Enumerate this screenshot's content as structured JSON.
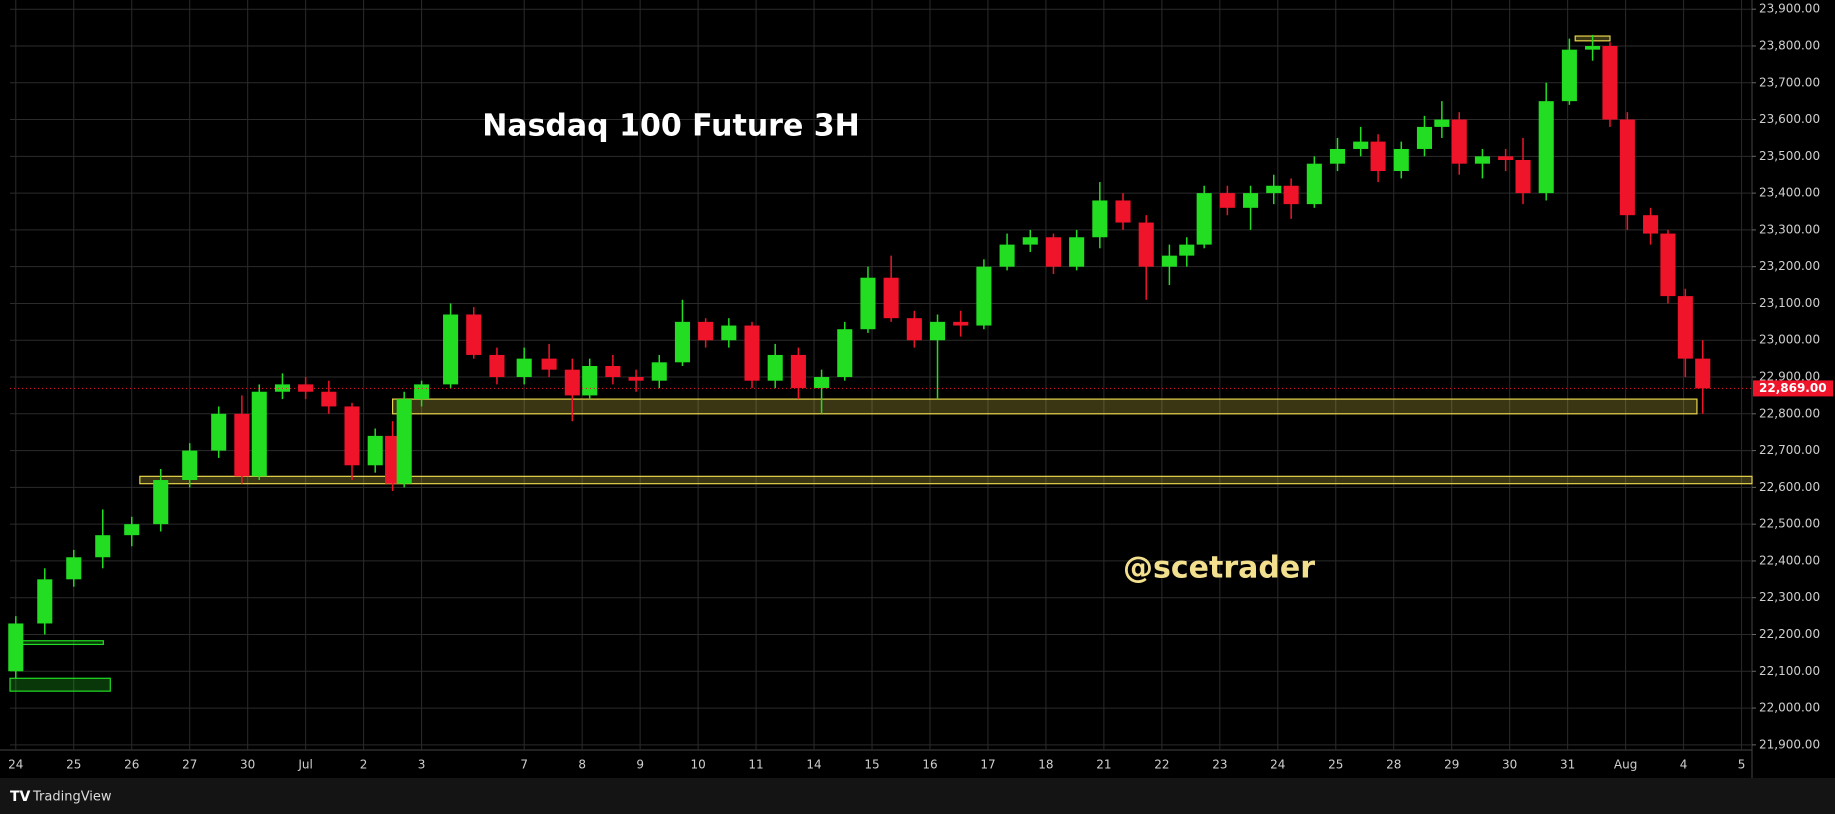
{
  "chart_data": {
    "type": "candlestick",
    "title": "Nasdaq 100 Future 3H",
    "watermark": "@scetrader",
    "brand": "TradingView",
    "up_color": "#22dd22",
    "down_color": "#f0142a",
    "grid": true,
    "xlim": [
      -0.1,
      29.95
    ],
    "ylim": [
      21886,
      23925
    ],
    "xticks": [
      {
        "value": 0,
        "label": "24"
      },
      {
        "value": 1,
        "label": "25"
      },
      {
        "value": 2,
        "label": "26"
      },
      {
        "value": 3,
        "label": "27"
      },
      {
        "value": 4,
        "label": "30"
      },
      {
        "value": 5,
        "label": "Jul"
      },
      {
        "value": 6,
        "label": "2"
      },
      {
        "value": 7,
        "label": "3"
      },
      {
        "value": 8.77,
        "label": "7"
      },
      {
        "value": 9.77,
        "label": "8"
      },
      {
        "value": 10.77,
        "label": "9"
      },
      {
        "value": 11.77,
        "label": "10"
      },
      {
        "value": 12.77,
        "label": "11"
      },
      {
        "value": 13.77,
        "label": "14"
      },
      {
        "value": 14.77,
        "label": "15"
      },
      {
        "value": 15.77,
        "label": "16"
      },
      {
        "value": 16.77,
        "label": "17"
      },
      {
        "value": 17.77,
        "label": "18"
      },
      {
        "value": 18.77,
        "label": "21"
      },
      {
        "value": 19.77,
        "label": "22"
      },
      {
        "value": 20.77,
        "label": "23"
      },
      {
        "value": 21.77,
        "label": "24"
      },
      {
        "value": 22.77,
        "label": "25"
      },
      {
        "value": 23.77,
        "label": "28"
      },
      {
        "value": 24.77,
        "label": "29"
      },
      {
        "value": 25.77,
        "label": "30"
      },
      {
        "value": 26.77,
        "label": "31"
      },
      {
        "value": 27.77,
        "label": "Aug"
      },
      {
        "value": 28.77,
        "label": "4"
      },
      {
        "value": 29.77,
        "label": "5"
      }
    ],
    "yticks": [
      {
        "value": 21900,
        "label": "21,900.00"
      },
      {
        "value": 22000,
        "label": "22,000.00"
      },
      {
        "value": 22100,
        "label": "22,100.00"
      },
      {
        "value": 22200,
        "label": "22,200.00"
      },
      {
        "value": 22300,
        "label": "22,300.00"
      },
      {
        "value": 22400,
        "label": "22,400.00"
      },
      {
        "value": 22500,
        "label": "22,500.00"
      },
      {
        "value": 22600,
        "label": "22,600.00"
      },
      {
        "value": 22700,
        "label": "22,700.00"
      },
      {
        "value": 22800,
        "label": "22,800.00"
      },
      {
        "value": 22900,
        "label": "22,900.00"
      },
      {
        "value": 23000,
        "label": "23,000.00"
      },
      {
        "value": 23100,
        "label": "23,100.00"
      },
      {
        "value": 23200,
        "label": "23,200.00"
      },
      {
        "value": 23300,
        "label": "23,300.00"
      },
      {
        "value": 23400,
        "label": "23,400.00"
      },
      {
        "value": 23500,
        "label": "23,500.00"
      },
      {
        "value": 23600,
        "label": "23,600.00"
      },
      {
        "value": 23700,
        "label": "23,700.00"
      },
      {
        "value": 23800,
        "label": "23,800.00"
      },
      {
        "value": 23900,
        "label": "23,900.00"
      }
    ],
    "last_price": {
      "value": 22869,
      "label": "22,869.00"
    },
    "x": [
      0.0,
      0.5,
      1.0,
      1.5,
      2.0,
      2.5,
      3.0,
      3.5,
      3.9,
      4.2,
      4.6,
      5.0,
      5.4,
      5.8,
      6.2,
      6.5,
      6.7,
      7.0,
      7.5,
      7.9,
      8.3,
      8.77,
      9.2,
      9.6,
      9.9,
      10.3,
      10.7,
      11.1,
      11.5,
      11.9,
      12.3,
      12.7,
      13.1,
      13.5,
      13.9,
      14.3,
      14.7,
      15.1,
      15.5,
      15.9,
      16.3,
      16.7,
      17.1,
      17.5,
      17.9,
      18.3,
      18.7,
      19.1,
      19.5,
      19.9,
      20.2,
      20.5,
      20.9,
      21.3,
      21.7,
      22.0,
      22.4,
      22.8,
      23.2,
      23.5,
      23.9,
      24.3,
      24.6,
      24.9,
      25.3,
      25.7,
      26.0,
      26.4,
      26.8,
      27.2,
      27.5,
      27.8,
      28.2,
      28.5,
      28.8,
      29.1
    ],
    "ohlc": [
      [
        22100,
        22250,
        22080,
        22230
      ],
      [
        22230,
        22380,
        22200,
        22350
      ],
      [
        22350,
        22430,
        22330,
        22410
      ],
      [
        22410,
        22540,
        22380,
        22470
      ],
      [
        22470,
        22520,
        22440,
        22500
      ],
      [
        22500,
        22650,
        22480,
        22620
      ],
      [
        22620,
        22720,
        22600,
        22700
      ],
      [
        22700,
        22820,
        22680,
        22800
      ],
      [
        22800,
        22850,
        22610,
        22630
      ],
      [
        22630,
        22880,
        22620,
        22860
      ],
      [
        22860,
        22910,
        22840,
        22880
      ],
      [
        22880,
        22900,
        22840,
        22860
      ],
      [
        22860,
        22890,
        22800,
        22820
      ],
      [
        22820,
        22830,
        22620,
        22660
      ],
      [
        22660,
        22760,
        22640,
        22740
      ],
      [
        22740,
        22780,
        22590,
        22610
      ],
      [
        22610,
        22860,
        22600,
        22840
      ],
      [
        22840,
        22890,
        22820,
        22880
      ],
      [
        22880,
        23100,
        22870,
        23070
      ],
      [
        23070,
        23090,
        22950,
        22960
      ],
      [
        22960,
        22980,
        22880,
        22900
      ],
      [
        22900,
        22980,
        22880,
        22950
      ],
      [
        22950,
        22990,
        22900,
        22920
      ],
      [
        22920,
        22950,
        22780,
        22850
      ],
      [
        22850,
        22950,
        22840,
        22930
      ],
      [
        22930,
        22960,
        22880,
        22900
      ],
      [
        22900,
        22920,
        22860,
        22890
      ],
      [
        22890,
        22960,
        22870,
        22940
      ],
      [
        22940,
        23110,
        22930,
        23050
      ],
      [
        23050,
        23060,
        22980,
        23000
      ],
      [
        23000,
        23060,
        22980,
        23040
      ],
      [
        23040,
        23050,
        22870,
        22890
      ],
      [
        22890,
        22990,
        22870,
        22960
      ],
      [
        22960,
        22980,
        22840,
        22870
      ],
      [
        22870,
        22920,
        22800,
        22900
      ],
      [
        22900,
        23050,
        22890,
        23030
      ],
      [
        23030,
        23200,
        23020,
        23170
      ],
      [
        23170,
        23230,
        23050,
        23060
      ],
      [
        23060,
        23080,
        22980,
        23000
      ],
      [
        23000,
        23070,
        22840,
        23050
      ],
      [
        23050,
        23080,
        23010,
        23040
      ],
      [
        23040,
        23220,
        23030,
        23200
      ],
      [
        23200,
        23290,
        23190,
        23260
      ],
      [
        23260,
        23300,
        23240,
        23280
      ],
      [
        23280,
        23290,
        23180,
        23200
      ],
      [
        23200,
        23300,
        23190,
        23280
      ],
      [
        23280,
        23430,
        23250,
        23380
      ],
      [
        23380,
        23400,
        23300,
        23320
      ],
      [
        23320,
        23340,
        23110,
        23200
      ],
      [
        23200,
        23260,
        23150,
        23230
      ],
      [
        23230,
        23280,
        23200,
        23260
      ],
      [
        23260,
        23420,
        23250,
        23400
      ],
      [
        23400,
        23420,
        23340,
        23360
      ],
      [
        23360,
        23420,
        23300,
        23400
      ],
      [
        23400,
        23450,
        23370,
        23420
      ],
      [
        23420,
        23440,
        23330,
        23370
      ],
      [
        23370,
        23500,
        23360,
        23480
      ],
      [
        23480,
        23550,
        23460,
        23520
      ],
      [
        23520,
        23580,
        23500,
        23540
      ],
      [
        23540,
        23560,
        23430,
        23460
      ],
      [
        23460,
        23540,
        23440,
        23520
      ],
      [
        23520,
        23610,
        23500,
        23580
      ],
      [
        23580,
        23650,
        23550,
        23600
      ],
      [
        23600,
        23620,
        23450,
        23480
      ],
      [
        23480,
        23520,
        23440,
        23500
      ],
      [
        23500,
        23520,
        23460,
        23490
      ],
      [
        23490,
        23550,
        23370,
        23400
      ],
      [
        23400,
        23700,
        23380,
        23650
      ],
      [
        23650,
        23820,
        23640,
        23790
      ],
      [
        23790,
        23830,
        23760,
        23800
      ],
      [
        23800,
        23810,
        23580,
        23600
      ],
      [
        23600,
        23620,
        23300,
        23340
      ],
      [
        23340,
        23360,
        23260,
        23290
      ],
      [
        23290,
        23300,
        23100,
        23120
      ],
      [
        23120,
        23140,
        22900,
        22950
      ],
      [
        22950,
        23000,
        22800,
        22869
      ]
    ],
    "zones": [
      {
        "x": [
          6.5,
          29.0
        ],
        "y": [
          22800,
          22840
        ],
        "color": "#e8d44d"
      },
      {
        "x": [
          2.14,
          29.95
        ],
        "y": [
          22610,
          22630
        ],
        "color": "#e8d44d"
      },
      {
        "x": [
          -0.1,
          1.51
        ],
        "y": [
          22173,
          22183
        ],
        "color": "#22dd22"
      },
      {
        "x": [
          -0.1,
          1.63
        ],
        "y": [
          22046,
          22081
        ],
        "color": "#22dd22"
      },
      {
        "x": [
          26.9,
          27.5
        ],
        "y": [
          23814,
          23827
        ],
        "color": "#e8d44d"
      }
    ]
  }
}
